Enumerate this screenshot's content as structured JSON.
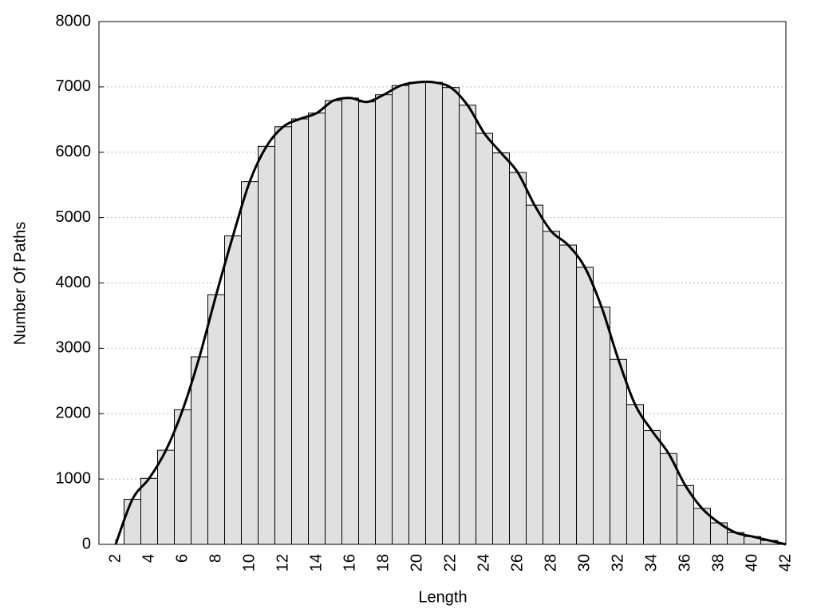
{
  "chart_data": {
    "type": "histogram",
    "xlabel": "Length",
    "ylabel": "Number Of Paths",
    "bins": [
      2.5,
      3.5,
      4.5,
      5.5,
      6.5,
      7.5,
      8.5,
      9.5,
      10.5,
      11.5,
      12.5,
      13.5,
      14.5,
      15.5,
      16.5,
      17.5,
      18.5,
      19.5,
      20.5,
      21.5,
      22.5,
      23.5,
      24.5,
      25.5,
      26.5,
      27.5,
      28.5,
      29.5,
      30.5,
      31.5,
      32.5,
      33.5,
      34.5,
      35.5,
      36.5,
      37.5,
      38.5,
      39.5,
      40.5,
      41.5
    ],
    "values": [
      690,
      1010,
      1440,
      2060,
      2870,
      3820,
      4720,
      5550,
      6090,
      6390,
      6510,
      6600,
      6790,
      6830,
      6770,
      6880,
      7020,
      7070,
      7070,
      6990,
      6720,
      6290,
      5990,
      5690,
      5190,
      4790,
      4580,
      4240,
      3630,
      2830,
      2140,
      1740,
      1390,
      900,
      550,
      330,
      180,
      120,
      60
    ],
    "color": "#e0e0e0",
    "edgecolor": "#000000",
    "line": {
      "color": "#000000",
      "x": [
        2,
        3,
        4,
        5,
        6,
        7,
        8,
        9,
        10,
        11,
        12,
        13,
        14,
        15,
        16,
        17,
        18,
        19,
        20,
        21,
        22,
        23,
        24,
        25,
        26,
        27,
        28,
        29,
        30,
        31,
        32,
        33,
        34,
        35,
        36,
        37,
        38,
        39,
        40,
        41,
        42
      ],
      "values": [
        0,
        690,
        1010,
        1440,
        2060,
        2870,
        3820,
        4720,
        5550,
        6090,
        6390,
        6510,
        6600,
        6790,
        6830,
        6770,
        6880,
        7020,
        7070,
        7070,
        6990,
        6720,
        6290,
        5990,
        5690,
        5190,
        4790,
        4580,
        4240,
        3630,
        2830,
        2140,
        1740,
        1390,
        900,
        550,
        330,
        180,
        120,
        60,
        0
      ]
    },
    "xlim": [
      1,
      42
    ],
    "ylim": [
      0,
      8000
    ],
    "xticks": [
      2,
      4,
      6,
      8,
      10,
      12,
      14,
      16,
      18,
      20,
      22,
      24,
      26,
      28,
      30,
      32,
      34,
      36,
      38,
      40,
      42
    ],
    "yticks": [
      0,
      1000,
      2000,
      3000,
      4000,
      5000,
      6000,
      7000,
      8000
    ],
    "grid": true
  }
}
